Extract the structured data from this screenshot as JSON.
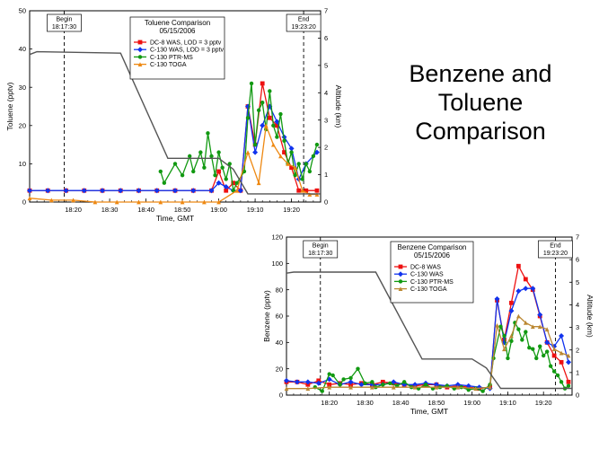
{
  "slide": {
    "title": "Benzene and\nToluene\nComparison"
  },
  "chart_data": [
    {
      "type": "line",
      "title": "Toluene Comparison\n05/15/2006",
      "xlabel": "Time, GMT",
      "ylabel": "Toluene (pptv)",
      "y2label": "Altitude (km)",
      "xlim": [
        "18:08",
        "19:28"
      ],
      "ylim": [
        0,
        50
      ],
      "y2lim": [
        0,
        7
      ],
      "xticks": [
        "18:20",
        "18:30",
        "18:40",
        "18:50",
        "19:00",
        "19:10",
        "19:20"
      ],
      "yticks": [
        0,
        10,
        20,
        30,
        40,
        50
      ],
      "y2ticks": [
        0,
        1,
        2,
        3,
        4,
        5,
        6,
        7
      ],
      "grid": false,
      "legend": "top-center",
      "markers": [
        {
          "time": "18:17:30",
          "label": "Begin\n18:17:30"
        },
        {
          "time": "19:23:20",
          "label": "End\n19:23:20"
        }
      ],
      "series": [
        {
          "name": "DC-8 WAS, LOD = 3 pptv",
          "color": "#ee1111",
          "marker": "square",
          "x": [
            "18:08",
            "18:13",
            "18:18",
            "18:23",
            "18:28",
            "18:33",
            "18:38",
            "18:43",
            "18:48",
            "18:53",
            "18:58",
            "19:00",
            "19:02",
            "19:04",
            "19:06",
            "19:08",
            "19:10",
            "19:12",
            "19:14",
            "19:16",
            "19:18",
            "19:20",
            "19:22",
            "19:24",
            "19:27"
          ],
          "y": [
            3,
            3,
            3,
            3,
            3,
            3,
            3,
            3,
            3,
            3,
            3,
            8,
            3,
            5,
            3,
            25,
            15,
            31,
            22,
            20,
            13,
            9,
            3,
            3,
            3
          ]
        },
        {
          "name": "C-130 WAS, LOD = 3 pptv",
          "color": "#1133ee",
          "marker": "diamond",
          "x": [
            "18:08",
            "18:13",
            "18:18",
            "18:23",
            "18:28",
            "18:33",
            "18:38",
            "18:43",
            "18:48",
            "18:53",
            "18:58",
            "19:00",
            "19:02",
            "19:04",
            "19:06",
            "19:08",
            "19:10",
            "19:12",
            "19:14",
            "19:16",
            "19:18",
            "19:20",
            "19:22",
            "19:24",
            "19:27"
          ],
          "y": [
            3,
            3,
            3,
            3,
            3,
            3,
            3,
            3,
            3,
            3,
            3,
            5,
            4,
            3,
            3,
            25,
            13,
            20,
            25,
            21,
            17,
            14,
            6,
            10,
            13
          ]
        },
        {
          "name": "C-130 PTR-MS",
          "color": "#119911",
          "marker": "circle",
          "x": [
            "18:44",
            "18:45",
            "18:48",
            "18:50",
            "18:52",
            "18:53",
            "18:55",
            "18:56",
            "18:57",
            "18:58",
            "18:59",
            "19:00",
            "19:01",
            "19:02",
            "19:03",
            "19:04",
            "19:05",
            "19:07",
            "19:08",
            "19:09",
            "19:10",
            "19:11",
            "19:12",
            "19:13",
            "19:14",
            "19:15",
            "19:16",
            "19:17",
            "19:18",
            "19:19",
            "19:20",
            "19:21",
            "19:22",
            "19:23",
            "19:24",
            "19:25",
            "19:26",
            "19:27"
          ],
          "y": [
            8,
            5,
            10,
            7,
            12,
            8,
            13,
            9,
            18,
            12,
            7,
            13,
            9,
            6,
            10,
            3,
            5,
            8,
            22,
            31,
            15,
            24,
            26,
            19,
            29,
            20,
            17,
            23,
            16,
            10,
            13,
            7,
            10,
            6,
            10,
            8,
            12,
            15
          ]
        },
        {
          "name": "C-130 TOGA",
          "color": "#ee8811",
          "marker": "triangle",
          "x": [
            "18:08",
            "18:14",
            "18:20",
            "18:26",
            "18:32",
            "18:38",
            "18:44",
            "18:50",
            "18:56",
            "19:00",
            "19:05",
            "19:08",
            "19:11",
            "19:13",
            "19:15",
            "19:17",
            "19:19",
            "19:21",
            "19:23",
            "19:25",
            "19:27"
          ],
          "y": [
            1,
            0.5,
            0.5,
            0,
            0,
            0,
            0,
            0,
            0,
            0,
            3,
            13,
            5,
            20,
            15,
            12,
            10,
            9,
            3,
            2,
            2
          ]
        },
        {
          "name": "Altitude",
          "color": "#555555",
          "axis": "y2",
          "x": [
            "18:08",
            "18:10",
            "18:33",
            "18:46",
            "18:54",
            "19:00",
            "19:04",
            "19:08",
            "19:15",
            "19:24",
            "19:28"
          ],
          "y": [
            5.4,
            5.5,
            5.45,
            1.6,
            1.6,
            1.6,
            1.2,
            0.3,
            0.3,
            0.3,
            0.3
          ]
        }
      ]
    },
    {
      "type": "line",
      "title": "Benzene Comparison\n05/15/2006",
      "xlabel": "Time, GMT",
      "ylabel": "Benzene (pptv)",
      "y2label": "Altitude (km)",
      "xlim": [
        "18:08",
        "19:28"
      ],
      "ylim": [
        0,
        120
      ],
      "y2lim": [
        0,
        7
      ],
      "xticks": [
        "18:20",
        "18:30",
        "18:40",
        "18:50",
        "19:00",
        "19:10",
        "19:20"
      ],
      "yticks": [
        0,
        20,
        40,
        60,
        80,
        100,
        120
      ],
      "y2ticks": [
        0,
        1,
        2,
        3,
        4,
        5,
        6,
        7
      ],
      "grid": false,
      "legend": "top-center",
      "markers": [
        {
          "time": "18:17:30",
          "label": "Begin\n18:17:30"
        },
        {
          "time": "19:23:20",
          "label": "End\n19:23:20"
        }
      ],
      "series": [
        {
          "name": "DC-8 WAS",
          "color": "#ee1111",
          "marker": "square",
          "x": [
            "18:08",
            "18:11",
            "18:14",
            "18:17",
            "18:20",
            "18:23",
            "18:26",
            "18:29",
            "18:32",
            "18:35",
            "18:38",
            "18:41",
            "18:44",
            "18:47",
            "18:50",
            "18:53",
            "18:56",
            "18:59",
            "19:02",
            "19:05",
            "19:07",
            "19:09",
            "19:11",
            "19:13",
            "19:15",
            "19:17",
            "19:19",
            "19:21",
            "19:23",
            "19:25",
            "19:27"
          ],
          "y": [
            10,
            10,
            8,
            11,
            8,
            9,
            8,
            9,
            8,
            10,
            9,
            8,
            7,
            8,
            8,
            6,
            7,
            6,
            5,
            6,
            72,
            42,
            70,
            98,
            88,
            80,
            60,
            40,
            30,
            25,
            10
          ]
        },
        {
          "name": "C-130 WAS",
          "color": "#1133ee",
          "marker": "diamond",
          "x": [
            "18:08",
            "18:11",
            "18:14",
            "18:17",
            "18:20",
            "18:23",
            "18:26",
            "18:29",
            "18:32",
            "18:35",
            "18:38",
            "18:41",
            "18:44",
            "18:47",
            "18:50",
            "18:53",
            "18:56",
            "18:59",
            "19:02",
            "19:05",
            "19:07",
            "19:09",
            "19:11",
            "19:13",
            "19:15",
            "19:17",
            "19:19",
            "19:21",
            "19:23",
            "19:25",
            "19:27"
          ],
          "y": [
            11,
            10,
            10,
            9,
            12,
            8,
            10,
            8,
            8,
            8,
            10,
            8,
            8,
            9,
            8,
            7,
            8,
            7,
            6,
            5,
            73,
            40,
            64,
            79,
            81,
            81,
            61,
            40,
            37,
            45,
            25
          ]
        },
        {
          "name": "C-130 PTR-MS",
          "color": "#119911",
          "marker": "circle",
          "x": [
            "18:16",
            "18:18",
            "18:20",
            "18:21",
            "18:23",
            "18:24",
            "18:26",
            "18:28",
            "18:30",
            "18:32",
            "18:33",
            "18:35",
            "18:37",
            "18:39",
            "18:41",
            "18:43",
            "18:45",
            "18:47",
            "18:49",
            "18:51",
            "18:53",
            "18:55",
            "18:57",
            "18:59",
            "19:01",
            "19:03",
            "19:05",
            "19:06",
            "19:08",
            "19:09",
            "19:10",
            "19:11",
            "19:12",
            "19:13",
            "19:14",
            "19:15",
            "19:16",
            "19:17",
            "19:18",
            "19:19",
            "19:20",
            "19:21",
            "19:22",
            "19:23",
            "19:24",
            "19:25",
            "19:26",
            "19:27"
          ],
          "y": [
            6,
            3,
            16,
            15,
            8,
            12,
            13,
            20,
            9,
            10,
            6,
            8,
            9,
            7,
            10,
            6,
            5,
            8,
            5,
            6,
            7,
            5,
            6,
            4,
            5,
            3,
            8,
            28,
            52,
            45,
            28,
            41,
            55,
            50,
            42,
            48,
            36,
            35,
            28,
            37,
            30,
            33,
            22,
            18,
            15,
            10,
            5,
            7
          ]
        },
        {
          "name": "C-130 TOGA",
          "color": "#bb8833",
          "marker": "triangle",
          "x": [
            "18:08",
            "18:14",
            "18:20",
            "18:26",
            "18:32",
            "18:38",
            "18:44",
            "18:50",
            "18:56",
            "19:01",
            "19:05",
            "19:07",
            "19:09",
            "19:11",
            "19:13",
            "19:15",
            "19:17",
            "19:19",
            "19:21",
            "19:23",
            "19:25",
            "19:27"
          ],
          "y": [
            5,
            5,
            6,
            6,
            6,
            6,
            6,
            6,
            6,
            5,
            6,
            53,
            35,
            45,
            60,
            55,
            52,
            52,
            50,
            35,
            32,
            30
          ]
        },
        {
          "name": "Altitude",
          "color": "#555555",
          "axis": "y2",
          "x": [
            "18:08",
            "18:10",
            "18:33",
            "18:46",
            "18:54",
            "19:00",
            "19:04",
            "19:08",
            "19:15",
            "19:24",
            "19:28"
          ],
          "y": [
            5.4,
            5.45,
            5.45,
            1.6,
            1.6,
            1.6,
            1.2,
            0.3,
            0.3,
            0.3,
            0.3
          ]
        }
      ]
    }
  ]
}
